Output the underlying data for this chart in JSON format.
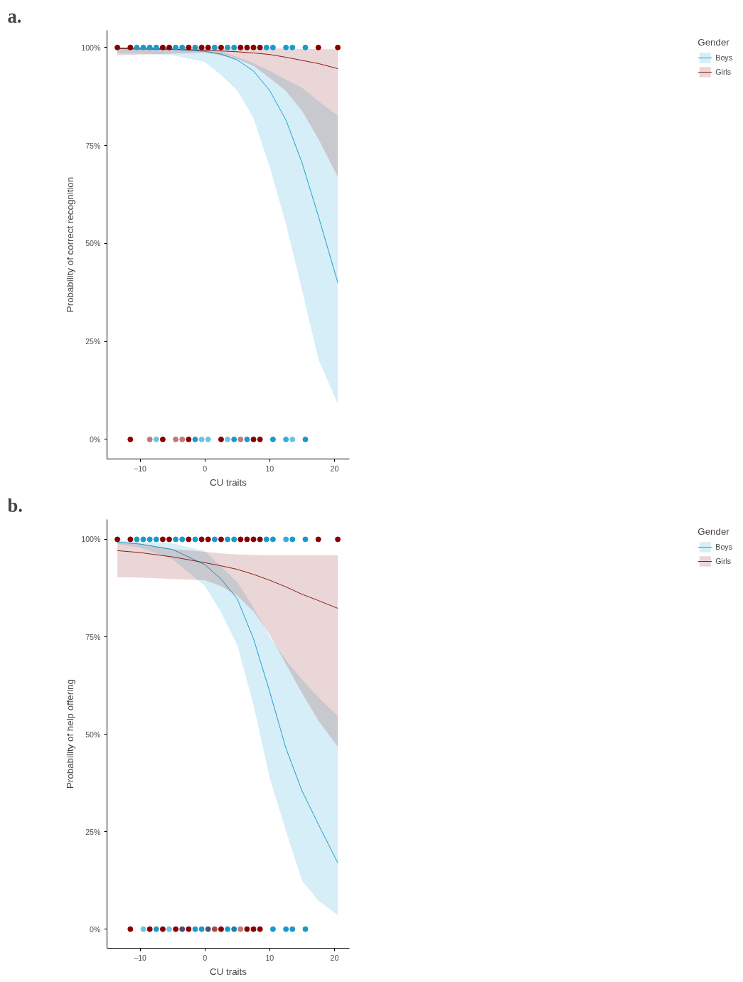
{
  "chart_data": [
    {
      "type": "line",
      "title": "a.",
      "xlabel": "CU traits",
      "ylabel": "Probability of correct recognition",
      "legend_title": "Gender",
      "legend": "right",
      "grid": false,
      "marker": "none",
      "line_style": "solid",
      "xlim": [
        -15.1,
        22.3
      ],
      "ylim": [
        -5,
        104.4
      ],
      "xticks": [
        -10,
        0,
        10,
        20
      ],
      "yticks": [
        {
          "value": 0,
          "label": "0%"
        },
        {
          "value": 25,
          "label": "25%"
        },
        {
          "value": 50,
          "label": "50%"
        },
        {
          "value": 75,
          "label": "75%"
        },
        {
          "value": 100,
          "label": "100%"
        }
      ],
      "series": [
        {
          "name": "Boys",
          "color": "#1a9fd0",
          "x": [
            -13.5,
            -10,
            -5,
            0,
            2.5,
            5,
            7.5,
            10,
            12.5,
            15,
            17.5,
            20.5
          ],
          "values": [
            99.9,
            99.8,
            99.6,
            99,
            98.3,
            96.8,
            94,
            89,
            81.5,
            70.5,
            57,
            40
          ],
          "lower": [
            98.5,
            98.4,
            98,
            96.3,
            93,
            89,
            82,
            69.5,
            55,
            38,
            20.5,
            9
          ],
          "upper": [
            100,
            100,
            99.9,
            99.6,
            99,
            97.6,
            96,
            94,
            91.8,
            89.7,
            86.3,
            82.6
          ]
        },
        {
          "name": "Girls",
          "color": "#8b1a1a",
          "x": [
            -13.5,
            -10,
            -5,
            0,
            2.5,
            5,
            7.5,
            10,
            12.5,
            15,
            17.5,
            20.5
          ],
          "values": [
            99.7,
            99.6,
            99.5,
            99.3,
            99.1,
            98.9,
            98.6,
            98.2,
            97.5,
            96.7,
            95.9,
            94.6
          ],
          "lower": [
            98,
            98.2,
            98.4,
            98.7,
            98,
            97,
            95.3,
            92.2,
            88.9,
            83.8,
            76.7,
            67
          ],
          "upper": [
            100,
            100,
            100,
            100,
            99.9,
            99.9,
            99.8,
            99.8,
            99.7,
            99.6,
            99.6,
            99.5
          ]
        },
        {
          "type": "scatter",
          "marker": "circle",
          "x": [
            -13.5,
            -11.5,
            -10.5,
            -9.5,
            -8.5,
            -7.5,
            -6.5,
            -5.5,
            -4.5,
            -3.5,
            -2.5,
            -1.5,
            -0.5,
            0.5,
            1.5,
            2.5,
            3.5,
            4.5,
            5.5,
            6.5,
            7.5,
            8.5,
            9.5,
            10.5,
            12.5,
            13.5,
            15.5,
            17.5,
            20.5,
            -11.5,
            -8.5,
            -7.5,
            -6.5,
            -4.5,
            -3.5,
            -2.5,
            -1.5,
            -0.5,
            0.5,
            2.5,
            3.5,
            4.5,
            5.5,
            6.5,
            7.5,
            8.5,
            10.5,
            12.5,
            13.5,
            15.5
          ],
          "values": [
            100,
            100,
            100,
            100,
            100,
            100,
            100,
            100,
            100,
            100,
            100,
            100,
            100,
            100,
            100,
            100,
            100,
            100,
            100,
            100,
            100,
            100,
            100,
            100,
            100,
            100,
            100,
            100,
            100,
            0,
            0,
            0,
            0,
            0,
            0,
            0,
            0,
            0,
            0,
            0,
            0,
            0,
            0,
            0,
            0,
            0,
            0,
            0,
            0,
            0
          ],
          "colors": [
            "#8b0000",
            "#8b0000",
            "#1a9acb",
            "#1a9acb",
            "#1a9acb",
            "#1a9acb",
            "#8b0000",
            "#8b0000",
            "#1a9acb",
            "#1a9acb",
            "#8b0000",
            "#1a9acb",
            "#8b0000",
            "#8b0000",
            "#1a9acb",
            "#8b0000",
            "#1a9acb",
            "#1a9acb",
            "#8b0000",
            "#8b0000",
            "#8b0000",
            "#8b0000",
            "#1a9acb",
            "#1a9acb",
            "#1a9acb",
            "#1a9acb",
            "#1a9acb",
            "#8b0000",
            "#8b0000",
            "#8b0000",
            "#c07878",
            "#6cc3e3",
            "#8b0000",
            "#c07878",
            "#c07878",
            "#8b0000",
            "#1a9acb",
            "#6cc3e3",
            "#6cc3e3",
            "#8b0000",
            "#6cc3e3",
            "#1a9acb",
            "#c07878",
            "#1a9acb",
            "#8b0000",
            "#8b0000",
            "#1a9acb",
            "#3aaad6",
            "#6cc3e3",
            "#1a9acb"
          ]
        }
      ]
    },
    {
      "type": "line",
      "title": "b.",
      "xlabel": "CU traits",
      "ylabel": "Probability of help offering",
      "legend_title": "Gender",
      "legend": "right",
      "grid": false,
      "marker": "none",
      "line_style": "solid",
      "xlim": [
        -15.1,
        22.3
      ],
      "ylim": [
        -4.9,
        105.1
      ],
      "xticks": [
        -10,
        0,
        10,
        20
      ],
      "yticks": [
        {
          "value": 0,
          "label": "0%"
        },
        {
          "value": 25,
          "label": "25%"
        },
        {
          "value": 50,
          "label": "50%"
        },
        {
          "value": 75,
          "label": "75%"
        },
        {
          "value": 100,
          "label": "100%"
        }
      ],
      "series": [
        {
          "name": "Boys",
          "color": "#1a9fd0",
          "x": [
            -13.5,
            -10,
            -5,
            0,
            2.5,
            5,
            7.5,
            10,
            12.5,
            15,
            17.5,
            20.5
          ],
          "values": [
            99.3,
            98.8,
            97.4,
            93.5,
            89.8,
            84.7,
            74.5,
            60.9,
            46.4,
            35.4,
            26.9,
            17
          ],
          "lower": [
            98.8,
            97.9,
            94.9,
            88.1,
            81.3,
            72.8,
            57.5,
            38.8,
            25.2,
            12.4,
            7.3,
            3.6
          ],
          "upper": [
            99.7,
            99.5,
            99,
            97,
            93,
            89,
            82.5,
            75,
            69,
            64,
            59.5,
            54.6
          ]
        },
        {
          "name": "Girls",
          "color": "#8b1a1a",
          "x": [
            -13.5,
            -10,
            -5,
            0,
            2.5,
            5,
            7.5,
            10,
            12.5,
            15,
            17.5,
            20.5
          ],
          "values": [
            97.1,
            96.6,
            95.5,
            94,
            93.2,
            92.3,
            91,
            89.5,
            87.8,
            85.9,
            84.3,
            82.3
          ],
          "lower": [
            90.3,
            90.2,
            89.8,
            89.5,
            88,
            85.5,
            81.5,
            75.5,
            68,
            60.5,
            53.5,
            46.8
          ],
          "upper": [
            99.2,
            98.8,
            97.5,
            96.8,
            96.4,
            96.1,
            96,
            95.9,
            95.9,
            95.9,
            95.9,
            95.9
          ]
        },
        {
          "type": "scatter",
          "marker": "circle",
          "x": [
            -13.5,
            -11.5,
            -10.5,
            -9.5,
            -8.5,
            -7.5,
            -6.5,
            -5.5,
            -4.5,
            -3.5,
            -2.5,
            -1.5,
            -0.5,
            0.5,
            1.5,
            2.5,
            3.5,
            4.5,
            5.5,
            6.5,
            7.5,
            8.5,
            9.5,
            10.5,
            12.5,
            13.5,
            15.5,
            17.5,
            20.5,
            -11.5,
            -9.5,
            -8.5,
            -7.5,
            -6.5,
            -5.5,
            -4.5,
            -3.5,
            -2.5,
            -1.5,
            -0.5,
            0.5,
            1.5,
            2.5,
            3.5,
            4.5,
            5.5,
            6.5,
            7.5,
            8.5,
            10.5,
            12.5,
            13.5,
            15.5
          ],
          "values": [
            100,
            100,
            100,
            100,
            100,
            100,
            100,
            100,
            100,
            100,
            100,
            100,
            100,
            100,
            100,
            100,
            100,
            100,
            100,
            100,
            100,
            100,
            100,
            100,
            100,
            100,
            100,
            100,
            100,
            0,
            0,
            0,
            0,
            0,
            0,
            0,
            0,
            0,
            0,
            0,
            0,
            0,
            0,
            0,
            0,
            0,
            0,
            0,
            0,
            0,
            0,
            0,
            0
          ],
          "colors": [
            "#8b0000",
            "#8b0000",
            "#1a9acb",
            "#1a9acb",
            "#1a9acb",
            "#1a9acb",
            "#8b0000",
            "#8b0000",
            "#1a9acb",
            "#1a9acb",
            "#8b0000",
            "#1a9acb",
            "#8b0000",
            "#8b0000",
            "#1a9acb",
            "#8b0000",
            "#1a9acb",
            "#1a9acb",
            "#8b0000",
            "#8b0000",
            "#8b0000",
            "#8b0000",
            "#1a9acb",
            "#1a9acb",
            "#3aaad6",
            "#1a9acb",
            "#1a9acb",
            "#8b0000",
            "#8b0000",
            "#8b0000",
            "#6cc3e3",
            "#8b0000",
            "#1a9acb",
            "#8b0000",
            "#6cc3e3",
            "#8b0000",
            "#4e4e6e",
            "#8b0000",
            "#1a9acb",
            "#1a9acb",
            "#4e4e6e",
            "#a54a4a",
            "#8b0000",
            "#1a9acb",
            "#1a7fab",
            "#c07878",
            "#8b0000",
            "#8b0000",
            "#8b0000",
            "#1a9acb",
            "#1a9acb",
            "#1a9acb",
            "#1a9acb"
          ]
        }
      ]
    }
  ]
}
